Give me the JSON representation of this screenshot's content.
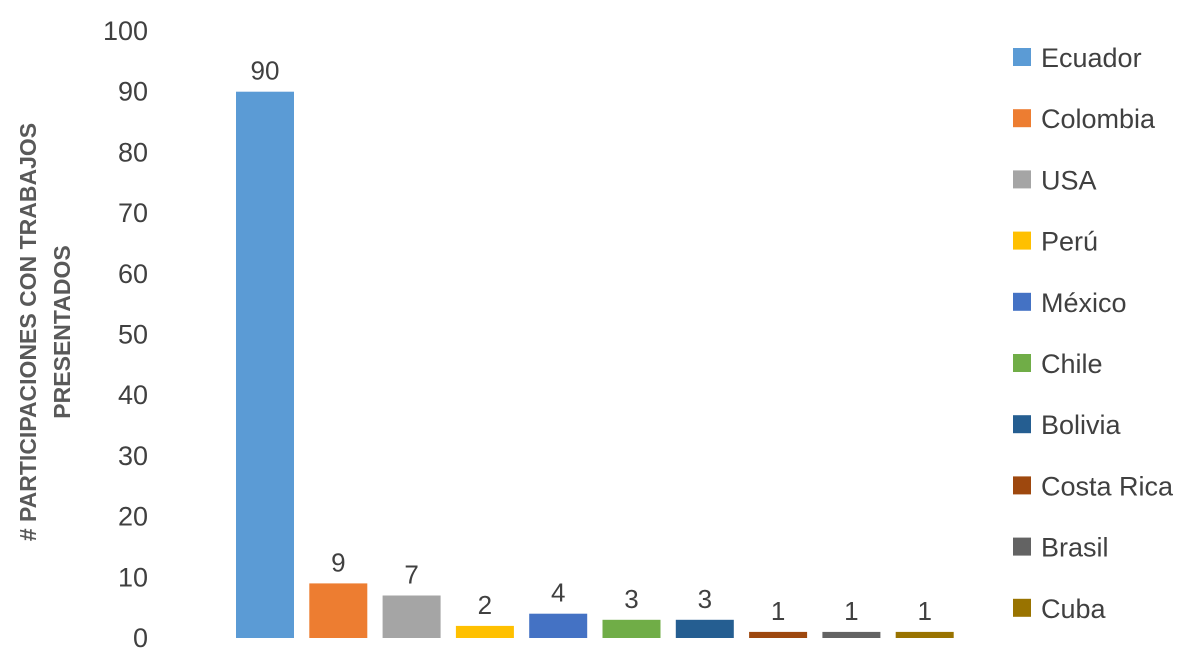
{
  "chart_data": {
    "type": "bar",
    "title": "",
    "xlabel": "",
    "ylabel_lines": [
      "# PARTICIPACIONES CON TRABAJOS",
      "PRESENTADOS"
    ],
    "ylim": [
      0,
      100
    ],
    "yticks": [
      0,
      10,
      20,
      30,
      40,
      50,
      60,
      70,
      80,
      90,
      100
    ],
    "grid": false,
    "legend_position": "right",
    "categories": [
      "Ecuador",
      "Colombia",
      "USA",
      "Perú",
      "México",
      "Chile",
      "Bolivia",
      "Costa Rica",
      "Brasil",
      "Cuba"
    ],
    "values": [
      90,
      9,
      7,
      2,
      4,
      3,
      3,
      1,
      1,
      1
    ],
    "colors": [
      "#5B9BD5",
      "#ED7D31",
      "#A5A5A5",
      "#FFC000",
      "#4472C4",
      "#70AD47",
      "#255E91",
      "#9E480E",
      "#636363",
      "#997300"
    ],
    "data_labels": [
      "90",
      "9",
      "7",
      "2",
      "4",
      "3",
      "3",
      "1",
      "1",
      "1"
    ]
  }
}
